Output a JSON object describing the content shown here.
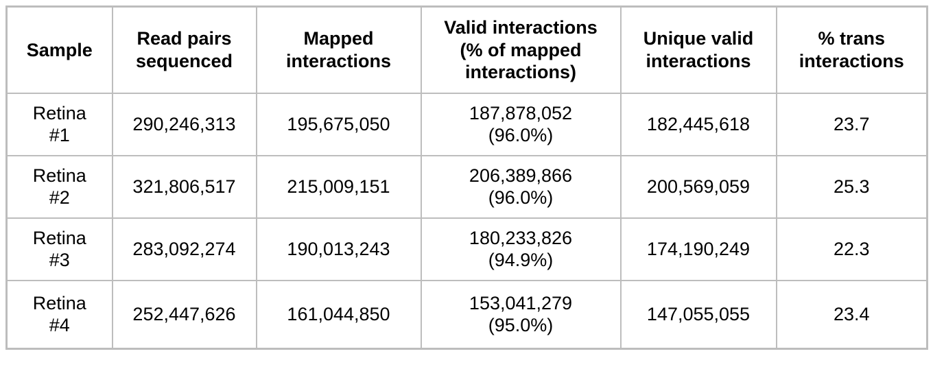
{
  "colors": {
    "border": "#bdbdbd",
    "text": "#000000",
    "background": "#ffffff"
  },
  "table": {
    "columns": [
      {
        "label": "Sample"
      },
      {
        "label": "Read pairs\nsequenced"
      },
      {
        "label": "Mapped\ninteractions"
      },
      {
        "label": "Valid interactions\n(% of mapped\ninteractions)"
      },
      {
        "label": "Unique valid\ninteractions"
      },
      {
        "label": "% trans\ninteractions"
      }
    ],
    "rows": [
      {
        "sample": "Retina\n#1",
        "read_pairs_sequenced": "290,246,313",
        "mapped_interactions": "195,675,050",
        "valid_interactions": "187,878,052\n(96.0%)",
        "unique_valid_interactions": "182,445,618",
        "pct_trans_interactions": "23.7"
      },
      {
        "sample": "Retina\n#2",
        "read_pairs_sequenced": "321,806,517",
        "mapped_interactions": "215,009,151",
        "valid_interactions": "206,389,866\n(96.0%)",
        "unique_valid_interactions": "200,569,059",
        "pct_trans_interactions": "25.3"
      },
      {
        "sample": "Retina\n#3",
        "read_pairs_sequenced": "283,092,274",
        "mapped_interactions": "190,013,243",
        "valid_interactions": "180,233,826\n(94.9%)",
        "unique_valid_interactions": "174,190,249",
        "pct_trans_interactions": "22.3"
      },
      {
        "sample": "Retina\n#4",
        "read_pairs_sequenced": "252,447,626",
        "mapped_interactions": "161,044,850",
        "valid_interactions": "153,041,279\n(95.0%)",
        "unique_valid_interactions": "147,055,055",
        "pct_trans_interactions": "23.4"
      }
    ]
  }
}
